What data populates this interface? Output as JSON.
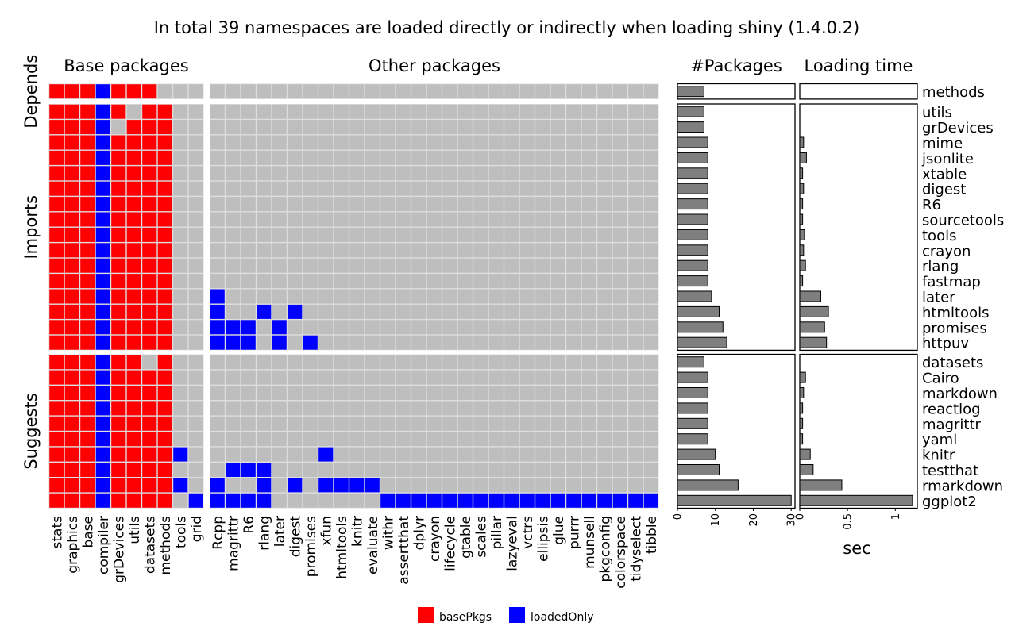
{
  "title": "In total 39 namespaces are loaded directly or indirectly when loading shiny (1.4.0.2)",
  "colors": {
    "basePkgs": "#ff0000",
    "loadedOnly": "#0000ff",
    "notLoaded": "#bebebe",
    "bar": "#7f7f7f"
  },
  "chart_data": {
    "type": "heatmap",
    "title": "In total 39 namespaces are loaded directly or indirectly when loading shiny (1.4.0.2)",
    "panels": {
      "base": "Base packages",
      "other": "Other packages",
      "npkg": "#Packages",
      "time": "Loading time"
    },
    "groups": [
      "Depends",
      "Imports",
      "Suggests"
    ],
    "group_sizes": [
      1,
      16,
      10
    ],
    "base_columns": [
      "stats",
      "graphics",
      "base",
      "compiler",
      "grDevices",
      "utils",
      "datasets",
      "methods",
      "tools",
      "grid"
    ],
    "other_columns": [
      "Rcpp",
      "magrittr",
      "R6",
      "rlang",
      "later",
      "digest",
      "promises",
      "xfun",
      "htmltools",
      "knitr",
      "evaluate",
      "withr",
      "assertthat",
      "dplyr",
      "crayon",
      "lifecycle",
      "gtable",
      "scales",
      "pillar",
      "lazyeval",
      "vctrs",
      "ellipsis",
      "glue",
      "purrr",
      "munsell",
      "pkgconfig",
      "colorspace",
      "tidyselect",
      "tibble"
    ],
    "rows": [
      {
        "name": "methods",
        "group": "Depends",
        "npkg": 7,
        "time": 0,
        "base": "RRRBRRR...",
        "other": "............................."
      },
      {
        "name": "utils",
        "group": "Imports",
        "npkg": 7,
        "time": 0,
        "base": "RRRBR.RR..",
        "other": "............................."
      },
      {
        "name": "grDevices",
        "group": "Imports",
        "npkg": 7,
        "time": 0,
        "base": "RRRB.RRR..",
        "other": "............................."
      },
      {
        "name": "mime",
        "group": "Imports",
        "npkg": 8,
        "time": 0.04,
        "base": "RRRBRRRR..",
        "other": "............................."
      },
      {
        "name": "jsonlite",
        "group": "Imports",
        "npkg": 8,
        "time": 0.07,
        "base": "RRRBRRRR..",
        "other": "............................."
      },
      {
        "name": "xtable",
        "group": "Imports",
        "npkg": 8,
        "time": 0.03,
        "base": "RRRBRRRR..",
        "other": "............................."
      },
      {
        "name": "digest",
        "group": "Imports",
        "npkg": 8,
        "time": 0.04,
        "base": "RRRBRRRR..",
        "other": "............................."
      },
      {
        "name": "R6",
        "group": "Imports",
        "npkg": 8,
        "time": 0.03,
        "base": "RRRBRRRR..",
        "other": "............................."
      },
      {
        "name": "sourcetools",
        "group": "Imports",
        "npkg": 8,
        "time": 0.03,
        "base": "RRRBRRRR..",
        "other": "............................."
      },
      {
        "name": "tools",
        "group": "Imports",
        "npkg": 8,
        "time": 0.05,
        "base": "RRRBRRRR..",
        "other": "............................."
      },
      {
        "name": "crayon",
        "group": "Imports",
        "npkg": 8,
        "time": 0.04,
        "base": "RRRBRRRR..",
        "other": "............................."
      },
      {
        "name": "rlang",
        "group": "Imports",
        "npkg": 8,
        "time": 0.06,
        "base": "RRRBRRRR..",
        "other": "............................."
      },
      {
        "name": "fastmap",
        "group": "Imports",
        "npkg": 8,
        "time": 0.03,
        "base": "RRRBRRRR..",
        "other": "............................."
      },
      {
        "name": "later",
        "group": "Imports",
        "npkg": 9,
        "time": 0.22,
        "base": "RRRBRRRR..",
        "other": "B............................"
      },
      {
        "name": "htmltools",
        "group": "Imports",
        "npkg": 11,
        "time": 0.3,
        "base": "RRRBRRRR..",
        "other": "B..B.B......................."
      },
      {
        "name": "promises",
        "group": "Imports",
        "npkg": 12,
        "time": 0.26,
        "base": "RRRBRRRR..",
        "other": "BBB.B........................"
      },
      {
        "name": "httpuv",
        "group": "Imports",
        "npkg": 13,
        "time": 0.28,
        "base": "RRRBRRRR..",
        "other": "BBB.B.B......................"
      },
      {
        "name": "datasets",
        "group": "Suggests",
        "npkg": 7,
        "time": 0,
        "base": "RRRBRR.R..",
        "other": "............................."
      },
      {
        "name": "Cairo",
        "group": "Suggests",
        "npkg": 8,
        "time": 0.06,
        "base": "RRRBRRRR..",
        "other": "............................."
      },
      {
        "name": "markdown",
        "group": "Suggests",
        "npkg": 8,
        "time": 0.04,
        "base": "RRRBRRRR..",
        "other": "............................."
      },
      {
        "name": "reactlog",
        "group": "Suggests",
        "npkg": 8,
        "time": 0.03,
        "base": "RRRBRRRR..",
        "other": "............................."
      },
      {
        "name": "magrittr",
        "group": "Suggests",
        "npkg": 8,
        "time": 0.03,
        "base": "RRRBRRRR..",
        "other": "............................."
      },
      {
        "name": "yaml",
        "group": "Suggests",
        "npkg": 8,
        "time": 0.03,
        "base": "RRRBRRRR..",
        "other": "............................."
      },
      {
        "name": "knitr",
        "group": "Suggests",
        "npkg": 10,
        "time": 0.11,
        "base": "RRRBRRRRB.",
        "other": ".......B....................."
      },
      {
        "name": "testthat",
        "group": "Suggests",
        "npkg": 11,
        "time": 0.14,
        "base": "RRRBRRRR..",
        "other": ".BBB........................."
      },
      {
        "name": "rmarkdown",
        "group": "Suggests",
        "npkg": 16,
        "time": 0.44,
        "base": "RRRBRRRRB.",
        "other": "B..B.B.BBBB.................."
      },
      {
        "name": "ggplot2",
        "group": "Suggests",
        "npkg": 30,
        "time": 1.18,
        "base": "RRRBRRRR.B",
        "other": "BBBB.......BBBBBBBBBBBBBBBBBB"
      }
    ],
    "npkg_axis": {
      "min": 0,
      "max": 31,
      "ticks": [
        0,
        10,
        20,
        30
      ],
      "tick_labels": [
        "0",
        "10",
        "20",
        "30"
      ]
    },
    "time_axis": {
      "min": 0,
      "max": 1.23,
      "label": "sec",
      "ticks": [
        0,
        0.5,
        1
      ],
      "tick_labels": [
        "0",
        "0.5",
        "1"
      ]
    },
    "legend": {
      "position": "bottom",
      "items": [
        {
          "label": "basePkgs",
          "color": "#ff0000"
        },
        {
          "label": "loadedOnly",
          "color": "#0000ff"
        }
      ]
    }
  }
}
